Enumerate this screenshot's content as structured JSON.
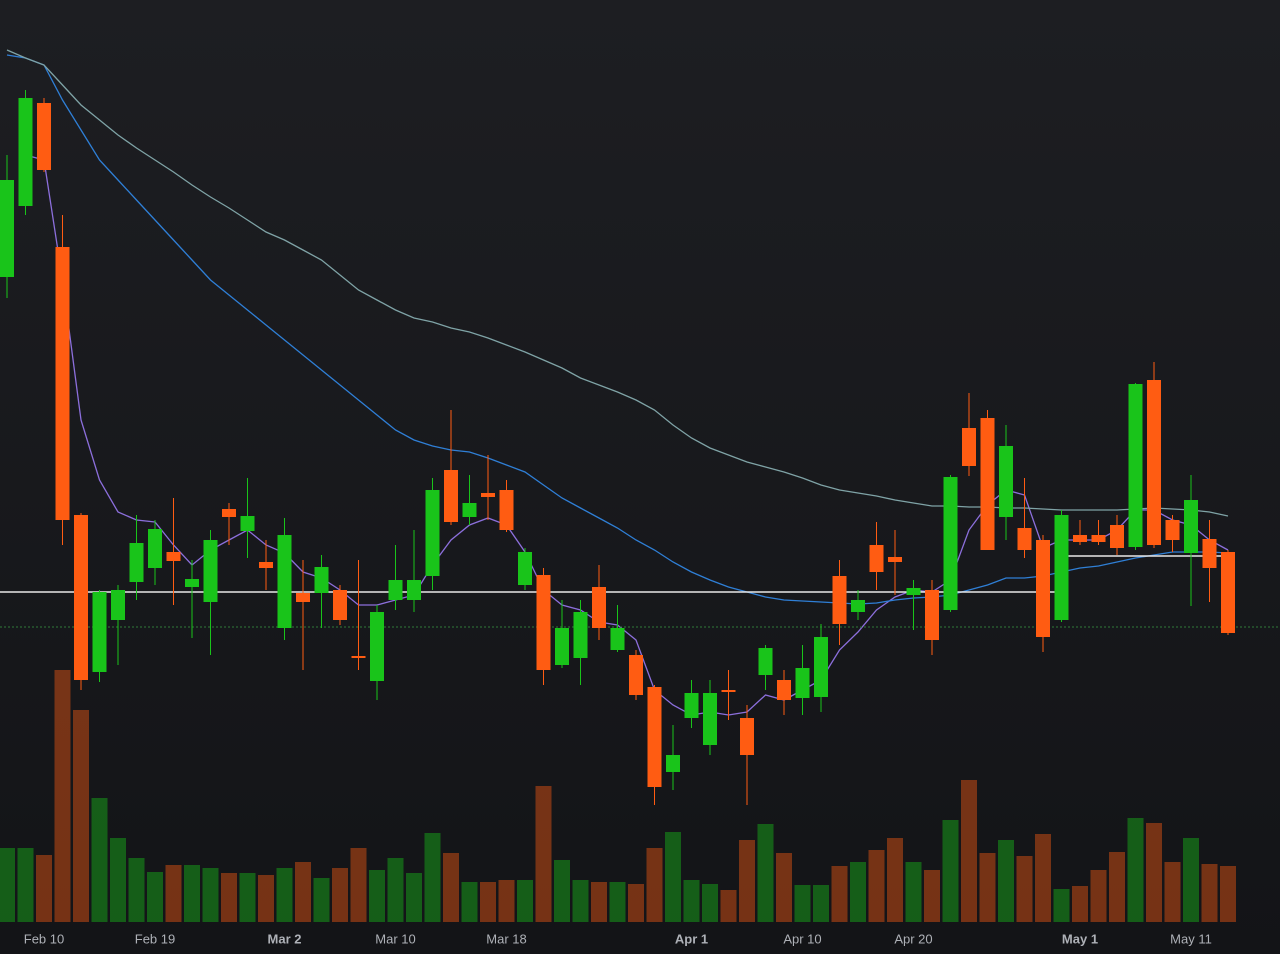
{
  "chart_data": {
    "type": "candlestick",
    "categories": [
      null,
      null,
      "Feb 10",
      null,
      null,
      null,
      null,
      null,
      "Feb 19",
      null,
      null,
      null,
      null,
      null,
      null,
      "Mar 2",
      null,
      null,
      null,
      null,
      null,
      "Mar 10",
      null,
      null,
      null,
      null,
      null,
      "Mar 18",
      null,
      null,
      null,
      null,
      null,
      null,
      null,
      null,
      null,
      "Apr 1",
      null,
      null,
      null,
      null,
      null,
      "Apr 10",
      null,
      null,
      null,
      null,
      null,
      "Apr 20",
      null,
      null,
      null,
      null,
      null,
      null,
      null,
      null,
      "May 1",
      null,
      null,
      null,
      null,
      null,
      "May 11",
      null,
      null
    ],
    "open": [
      67.7,
      74.8,
      85.1,
      70.7,
      43.9,
      28.2,
      33.4,
      37.2,
      38.6,
      40.2,
      36.7,
      35.2,
      44.5,
      42.3,
      39.2,
      32.6,
      36.1,
      36.1,
      36.4,
      29.8,
      27.3,
      35.4,
      35.4,
      37.8,
      48.4,
      43.7,
      46.1,
      46.4,
      36.9,
      37.9,
      28.9,
      29.6,
      36.7,
      30.4,
      29.9,
      26.7,
      18.2,
      23.6,
      20.9,
      26.4,
      23.6,
      27.9,
      27.4,
      25.6,
      25.7,
      37.8,
      34.2,
      40.9,
      39.7,
      35.9,
      36.4,
      34.4,
      52.6,
      53.6,
      43.7,
      42.6,
      41.4,
      33.4,
      41.9,
      41.9,
      42.9,
      40.7,
      57.4,
      43.4,
      40.1,
      41.5,
      40.2
    ],
    "high": [
      79.9,
      86.4,
      85.6,
      73.9,
      44.1,
      36.4,
      36.9,
      43.9,
      43.4,
      45.6,
      39.4,
      42.4,
      45.1,
      47.6,
      41.4,
      43.6,
      39.4,
      39.9,
      36.9,
      39.4,
      34.9,
      40.9,
      42.4,
      47.6,
      54.4,
      47.9,
      49.9,
      47.4,
      40.6,
      38.6,
      35.4,
      35.4,
      38.9,
      34.9,
      30.4,
      26.9,
      22.9,
      27.4,
      27.4,
      28.4,
      24.9,
      30.9,
      28.4,
      30.9,
      33.0,
      39.4,
      36.4,
      43.2,
      42.4,
      37.4,
      37.4,
      47.9,
      56.1,
      54.4,
      52.9,
      47.6,
      41.9,
      44.4,
      43.4,
      43.4,
      43.9,
      57.1,
      59.2,
      43.9,
      47.9,
      43.4,
      40.4
    ],
    "low": [
      65.6,
      73.9,
      78.2,
      40.9,
      26.4,
      27.2,
      28.9,
      35.4,
      36.9,
      34.9,
      31.6,
      29.9,
      40.9,
      39.6,
      36.4,
      31.4,
      28.4,
      32.6,
      32.9,
      28.4,
      25.4,
      34.4,
      34.2,
      36.4,
      42.9,
      42.9,
      43.4,
      42.2,
      36.4,
      26.9,
      28.6,
      26.9,
      31.4,
      30.2,
      25.4,
      14.9,
      16.4,
      22.6,
      19.9,
      23.4,
      14.9,
      26.4,
      23.9,
      23.9,
      24.2,
      30.9,
      33.4,
      36.4,
      35.9,
      32.4,
      29.9,
      34.2,
      47.8,
      40.4,
      41.4,
      39.6,
      30.2,
      33.2,
      40.9,
      40.9,
      39.9,
      40.4,
      40.6,
      40.2,
      34.8,
      35.2,
      31.9
    ],
    "close": [
      77.4,
      85.6,
      78.4,
      43.4,
      27.4,
      36.2,
      36.4,
      41.1,
      42.5,
      39.3,
      37.5,
      41.4,
      43.7,
      43.8,
      38.6,
      41.9,
      35.2,
      38.7,
      33.4,
      29.6,
      34.2,
      37.4,
      37.4,
      46.4,
      43.2,
      45.1,
      45.7,
      42.4,
      40.2,
      28.4,
      32.6,
      34.2,
      32.6,
      32.6,
      25.9,
      16.7,
      19.9,
      26.1,
      26.1,
      26.2,
      19.9,
      30.6,
      25.4,
      28.6,
      31.7,
      33.0,
      35.4,
      38.2,
      39.2,
      36.6,
      31.4,
      47.7,
      48.8,
      40.4,
      50.8,
      40.4,
      31.7,
      43.9,
      41.2,
      41.2,
      40.6,
      57.0,
      40.9,
      41.4,
      45.4,
      38.6,
      32.1
    ],
    "volume": [
      74,
      74,
      67,
      252,
      212,
      124,
      84,
      64,
      50,
      57,
      57,
      54,
      49,
      49,
      47,
      54,
      60,
      44,
      54,
      74,
      52,
      64,
      49,
      89,
      69,
      40,
      40,
      42,
      42,
      136,
      62,
      42,
      40,
      40,
      38,
      74,
      90,
      42,
      38,
      32,
      82,
      98,
      69,
      37,
      37,
      56,
      60,
      72,
      84,
      60,
      52,
      102,
      142,
      69,
      82,
      66,
      88,
      33,
      36,
      52,
      70,
      104,
      99,
      60,
      84,
      58,
      56
    ],
    "series": [
      {
        "color": "#8c6fdc",
        "values": [
          null,
          79.9,
          79.4,
          67.4,
          53.4,
          47.4,
          44.2,
          43.4,
          43.2,
          40.9,
          38.9,
          40.4,
          41.4,
          42.4,
          40.9,
          40.1,
          38.2,
          37.6,
          36.4,
          34.9,
          34.9,
          35.4,
          35.9,
          38.9,
          41.4,
          42.9,
          43.6,
          42.9,
          40.2,
          36.4,
          34.9,
          34.4,
          33.2,
          32.9,
          31.4,
          26.4,
          24.9,
          23.9,
          24.2,
          23.9,
          24.2,
          25.9,
          25.4,
          26.4,
          27.4,
          30.4,
          32.2,
          34.4,
          35.7,
          36.4,
          36.2,
          37.4,
          42.4,
          44.9,
          46.4,
          45.9,
          40.6,
          41.4,
          41.4,
          41.4,
          42.4,
          44.4,
          44.4,
          43.4,
          42.9,
          41.4,
          40.4
        ]
      },
      {
        "color": "#2f7fd6",
        "values": [
          89.9,
          89.6,
          88.9,
          85.4,
          82.4,
          79.4,
          77.4,
          75.4,
          73.4,
          71.4,
          69.4,
          67.4,
          65.9,
          64.4,
          62.9,
          61.4,
          59.9,
          58.4,
          56.9,
          55.4,
          53.9,
          52.4,
          51.4,
          50.8,
          50.4,
          50.2,
          49.6,
          48.9,
          48.2,
          46.9,
          45.6,
          44.6,
          43.6,
          42.6,
          41.4,
          40.4,
          39.2,
          38.2,
          37.4,
          36.7,
          36.2,
          35.7,
          35.4,
          35.3,
          35.2,
          35.1,
          35.0,
          35.1,
          35.4,
          35.6,
          35.7,
          35.9,
          36.4,
          36.9,
          37.6,
          37.6,
          37.8,
          38.2,
          38.6,
          38.8,
          39.2,
          39.6,
          39.9,
          40.2,
          40.2,
          40.2,
          40.1
        ]
      },
      {
        "color": "#7fa3a6",
        "values": [
          90.4,
          89.6,
          88.9,
          86.9,
          84.9,
          83.4,
          81.9,
          80.6,
          79.4,
          78.2,
          76.9,
          75.7,
          74.6,
          73.4,
          72.2,
          71.4,
          70.4,
          69.4,
          67.9,
          66.4,
          65.4,
          64.4,
          63.6,
          63.2,
          62.6,
          62.2,
          61.6,
          60.9,
          60.2,
          59.4,
          58.6,
          57.6,
          56.9,
          56.2,
          55.4,
          54.4,
          52.9,
          51.6,
          50.6,
          49.9,
          49.2,
          48.7,
          48.2,
          47.6,
          46.9,
          46.4,
          46.1,
          45.8,
          45.4,
          45.1,
          44.8,
          44.8,
          44.7,
          44.7,
          44.6,
          44.6,
          44.5,
          44.4,
          44.4,
          44.4,
          44.4,
          44.5,
          44.6,
          44.5,
          44.4,
          44.2,
          43.8
        ]
      }
    ],
    "levels": [
      {
        "value": 36.2,
        "color": "#e8e8e8",
        "span": [
          0,
          57
        ]
      },
      {
        "value": 39.8,
        "color": "#e8e8e8",
        "span": [
          57,
          66
        ]
      },
      {
        "value": 32.7,
        "color": "#2f7a3a",
        "dashed": true
      }
    ],
    "up_color": "#19c41a",
    "down_color": "#ff5c12",
    "ylim": [
      0,
      95.4
    ],
    "y2lim": [
      0,
      954
    ]
  }
}
